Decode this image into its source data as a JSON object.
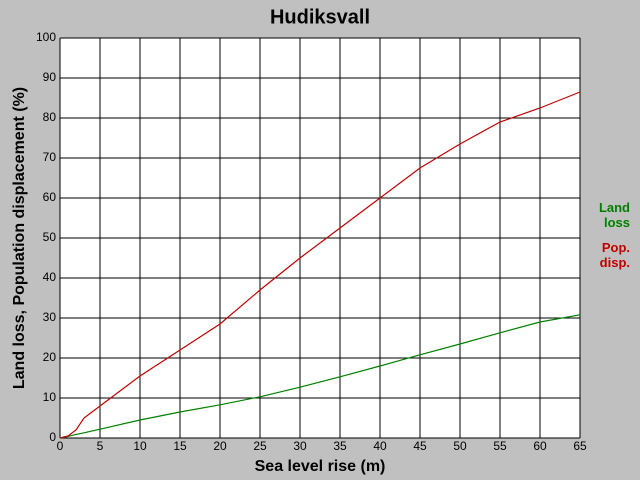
{
  "chart_data": {
    "type": "line",
    "title": "Hudiksvall",
    "xlabel": "Sea level rise (m)",
    "ylabel": "Land loss, Population displacement (%)",
    "x": [
      0,
      1,
      2,
      3,
      5,
      10,
      15,
      20,
      25,
      30,
      35,
      40,
      45,
      50,
      55,
      60,
      65
    ],
    "series": [
      {
        "name": "Land loss",
        "color": "#008000",
        "values": [
          0,
          0.4,
          0.9,
          1.3,
          2.2,
          4.5,
          6.5,
          8.3,
          10.3,
          12.7,
          15.3,
          18,
          20.8,
          23.5,
          26.3,
          29,
          30.8
        ]
      },
      {
        "name": "Pop. disp.",
        "color": "#c00000",
        "values": [
          0,
          0.5,
          2,
          5,
          8,
          15.5,
          22,
          28.5,
          37,
          45,
          52.5,
          60,
          67.5,
          73.5,
          79,
          82.5,
          86.5
        ]
      }
    ],
    "xlim": [
      0,
      65
    ],
    "xticks": [
      0,
      5,
      10,
      15,
      20,
      25,
      30,
      35,
      40,
      45,
      50,
      55,
      60,
      65
    ],
    "ylim": [
      0,
      100
    ],
    "yticks": [
      0,
      10,
      20,
      30,
      40,
      50,
      60,
      70,
      80,
      90,
      100
    ],
    "grid": true
  }
}
